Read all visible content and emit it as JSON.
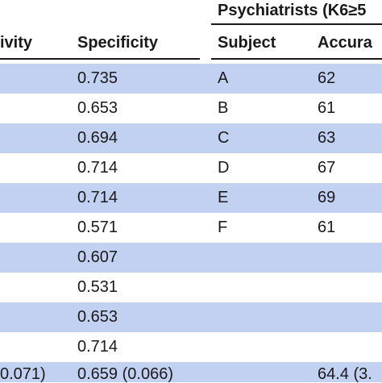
{
  "header": {
    "group_title": "Psychiatrists (K6≥5",
    "col_sensitivity": "ivity",
    "col_specificity": "Specificity",
    "col_subject": "Subject",
    "col_accuracy": "Accura"
  },
  "rows": [
    {
      "specificity": "0.735",
      "subject": "A",
      "accuracy": "62"
    },
    {
      "specificity": "0.653",
      "subject": "B",
      "accuracy": "61"
    },
    {
      "specificity": "0.694",
      "subject": "C",
      "accuracy": "63"
    },
    {
      "specificity": "0.714",
      "subject": "D",
      "accuracy": "67"
    },
    {
      "specificity": "0.714",
      "subject": "E",
      "accuracy": "69"
    },
    {
      "specificity": "0.571",
      "subject": "F",
      "accuracy": "61"
    },
    {
      "specificity": "0.607",
      "subject": "",
      "accuracy": ""
    },
    {
      "specificity": "0.531",
      "subject": "",
      "accuracy": ""
    },
    {
      "specificity": "0.653",
      "subject": "",
      "accuracy": ""
    },
    {
      "specificity": "0.714",
      "subject": "",
      "accuracy": ""
    }
  ],
  "summary": {
    "sensitivity": "0.071)",
    "specificity": "0.659 (0.066)",
    "accuracy": "64.4 (3."
  },
  "colors": {
    "band": "#c2d0f2",
    "text": "#1a1a1a"
  }
}
